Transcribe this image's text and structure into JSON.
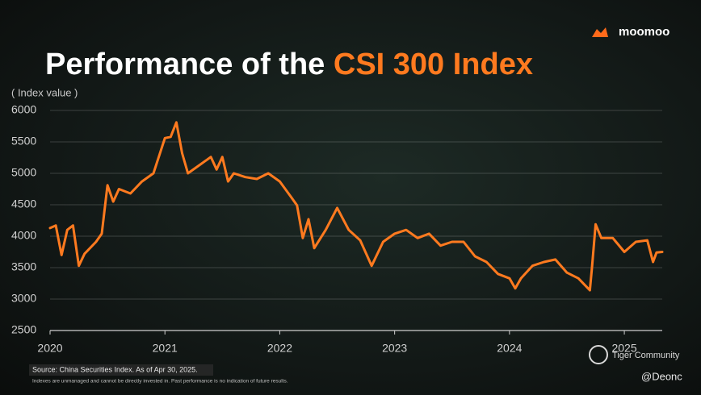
{
  "chart_data": {
    "type": "line",
    "brand": "moomoo",
    "title_parts": [
      "Performance of the ",
      "CSI 300 Index"
    ],
    "y_label": "( Index value )",
    "color": "#ff7a1f",
    "accent_color": "#ff7a1f",
    "grid": true,
    "xlim": [
      2020,
      2025.33
    ],
    "xticks": [
      2020,
      2021,
      2022,
      2023,
      2024,
      2025
    ],
    "ylim": [
      2500,
      6000
    ],
    "yticks": [
      2500,
      3000,
      3500,
      4000,
      4500,
      5000,
      5500,
      6000
    ],
    "x": [
      2020.0,
      2020.05,
      2020.1,
      2020.15,
      2020.2,
      2020.25,
      2020.3,
      2020.4,
      2020.45,
      2020.5,
      2020.55,
      2020.6,
      2020.7,
      2020.8,
      2020.9,
      2021.0,
      2021.05,
      2021.1,
      2021.15,
      2021.2,
      2021.3,
      2021.4,
      2021.45,
      2021.5,
      2021.55,
      2021.6,
      2021.7,
      2021.8,
      2021.9,
      2022.0,
      2022.1,
      2022.15,
      2022.2,
      2022.25,
      2022.3,
      2022.4,
      2022.5,
      2022.6,
      2022.7,
      2022.8,
      2022.9,
      2023.0,
      2023.1,
      2023.2,
      2023.3,
      2023.4,
      2023.5,
      2023.6,
      2023.7,
      2023.8,
      2023.9,
      2024.0,
      2024.05,
      2024.1,
      2024.2,
      2024.3,
      2024.4,
      2024.5,
      2024.6,
      2024.7,
      2024.72,
      2024.75,
      2024.8,
      2024.9,
      2025.0,
      2025.1,
      2025.2,
      2025.25,
      2025.28,
      2025.33
    ],
    "values": [
      4130,
      4170,
      3700,
      4100,
      4170,
      3530,
      3720,
      3910,
      4040,
      4810,
      4550,
      4750,
      4680,
      4870,
      5000,
      5560,
      5580,
      5810,
      5320,
      5000,
      5130,
      5260,
      5060,
      5260,
      4870,
      5000,
      4940,
      4910,
      5000,
      4870,
      4620,
      4490,
      3970,
      4270,
      3810,
      4100,
      4450,
      4100,
      3935,
      3530,
      3910,
      4040,
      4100,
      3970,
      4040,
      3850,
      3910,
      3910,
      3680,
      3590,
      3400,
      3330,
      3170,
      3330,
      3530,
      3590,
      3630,
      3420,
      3330,
      3140,
      3530,
      4190,
      3970,
      3970,
      3750,
      3910,
      3935,
      3590,
      3740,
      3750
    ],
    "source": "Source: China Securities Index. As of Apr 30, 2025.",
    "note": "Indexes are unmanaged and cannot be directly invested in. Past performance is no indication of future results.",
    "watermark": "Tiger Community",
    "handle": "@Deonc"
  }
}
